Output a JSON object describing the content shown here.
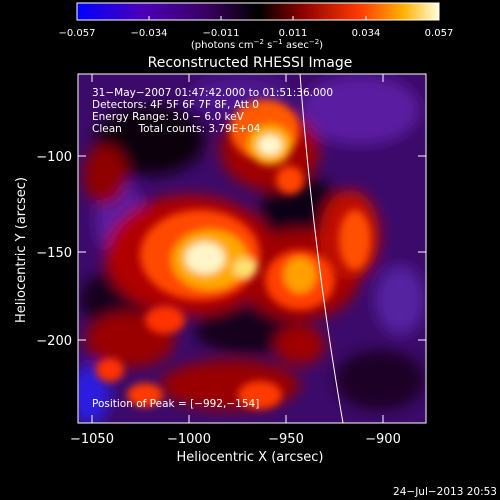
{
  "colorbar": {
    "ticks": [
      "−0.057",
      "−0.034",
      "−0.011",
      "0.011",
      "0.034",
      "0.057"
    ],
    "units_prefix": "(photons cm",
    "units_exp1": "−2",
    "units_mid": " s",
    "units_exp2": "−1",
    "units_mid2": " asec",
    "units_exp3": "−2",
    "units_suffix": ")"
  },
  "title": "Reconstructed RHESSI Image",
  "info": {
    "line1": "31−May−2007 01:47:42.000 to 01:51:36.000",
    "line2": "Detectors: 4F 5F 6F 7F 8F, Att 0",
    "line3": "Energy Range: 3.0 − 6.0 keV",
    "line4": "Clean     Total counts: 3.79E+04",
    "peak": "Position of Peak = [−992,−154]"
  },
  "axes": {
    "xlabel": "Heliocentric X (arcsec)",
    "ylabel": "Heliocentric Y (arcsec)",
    "xticks": [
      "−1050",
      "−1000",
      "−950",
      "−900"
    ],
    "yticks": [
      "−100",
      "−150",
      "−200"
    ]
  },
  "timestamp": "24−Jul−2013 20:53",
  "colors": {
    "background": "#000000",
    "text": "#ffffff",
    "limb": "#ffffff"
  }
}
